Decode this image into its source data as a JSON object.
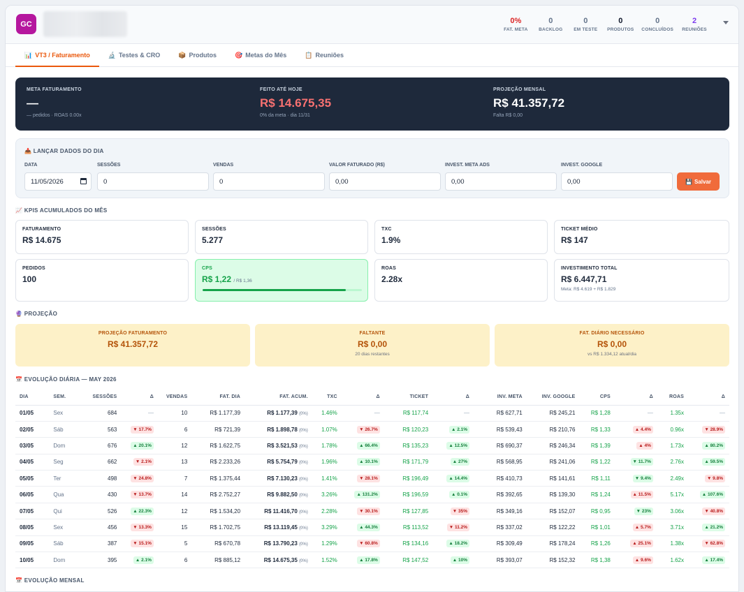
{
  "header": {
    "avatar": "GC",
    "stats": [
      {
        "num": "0%",
        "label": "FAT. META",
        "tone": "red"
      },
      {
        "num": "0",
        "label": "BACKLOG",
        "tone": ""
      },
      {
        "num": "0",
        "label": "EM TESTE",
        "tone": ""
      },
      {
        "num": "0",
        "label": "PRODUTOS",
        "tone": "dark"
      },
      {
        "num": "0",
        "label": "CONCLUÍDOS",
        "tone": ""
      },
      {
        "num": "2",
        "label": "REUNIÕES",
        "tone": "purple"
      }
    ]
  },
  "tabs": [
    {
      "icon": "📊",
      "label": "VT3 / Faturamento"
    },
    {
      "icon": "🔬",
      "label": "Testes & CRO"
    },
    {
      "icon": "📦",
      "label": "Produtos"
    },
    {
      "icon": "🎯",
      "label": "Metas do Mês"
    },
    {
      "icon": "📋",
      "label": "Reuniões"
    }
  ],
  "banner": {
    "meta": {
      "label": "META FATURAMENTO",
      "value": "—",
      "sub": "— pedidos · ROAS 0.00x"
    },
    "feito": {
      "label": "FEITO ATÉ HOJE",
      "value": "R$ 14.675,35",
      "sub": "0% da meta · dia 11/31"
    },
    "projecao": {
      "label": "PROJEÇÃO MENSAL",
      "value": "R$ 41.357,72",
      "sub": "Falta R$ 0,00"
    }
  },
  "launch": {
    "icon": "📥",
    "title": "LANÇAR DADOS DO DIA",
    "fields": [
      {
        "label": "DATA",
        "value": "11/05/2026"
      },
      {
        "label": "SESSÕES",
        "value": "0"
      },
      {
        "label": "VENDAS",
        "value": "0"
      },
      {
        "label": "VALOR FATURADO (R$)",
        "value": "0,00"
      },
      {
        "label": "INVEST. META ADS",
        "value": "0,00"
      },
      {
        "label": "INVEST. GOOGLE",
        "value": "0,00"
      }
    ],
    "save": {
      "icon": "💾",
      "label": "Salvar"
    }
  },
  "kpis": {
    "icon": "📈",
    "title": "KPIS ACUMULADOS DO MÊS",
    "faturamento": {
      "label": "FATURAMENTO",
      "value": "R$ 14.675"
    },
    "sessoes": {
      "label": "SESSÕES",
      "value": "5.277"
    },
    "txc": {
      "label": "TXC",
      "value": "1.9%"
    },
    "ticket": {
      "label": "TICKET MÉDIO",
      "value": "R$ 147"
    },
    "pedidos": {
      "label": "PEDIDOS",
      "value": "100"
    },
    "cps": {
      "label": "CPS",
      "value": "R$ 1,22",
      "ref": "/ R$ 1,36",
      "progress": 0.9
    },
    "roas": {
      "label": "ROAS",
      "value": "2.28x"
    },
    "invest": {
      "label": "INVESTIMENTO TOTAL",
      "value": "R$ 6.447,71",
      "sub": "Meta: R$ 4.619 + R$ 1.829"
    }
  },
  "projection": {
    "icon": "🔮",
    "title": "PROJEÇÃO",
    "cards": [
      {
        "label": "PROJEÇÃO FATURAMENTO",
        "value": "R$ 41.357,72",
        "sub": ""
      },
      {
        "label": "FALTANTE",
        "value": "R$ 0,00",
        "sub": "20 dias restantes"
      },
      {
        "label": "FAT. DIÁRIO NECESSÁRIO",
        "value": "R$ 0,00",
        "sub": "vs R$ 1.334,12 atual/dia"
      }
    ]
  },
  "daily": {
    "icon": "📅",
    "title": "EVOLUÇÃO DIÁRIA — MAY 2026",
    "columns": [
      "DIA",
      "SEM.",
      "SESSÕES",
      "Δ",
      "VENDAS",
      "FAT. DIA",
      "FAT. ACUM.",
      "TXC",
      "Δ",
      "TICKET",
      "Δ",
      "INV. META",
      "INV. GOOGLE",
      "CPS",
      "Δ",
      "ROAS",
      "Δ"
    ],
    "rows": [
      {
        "dia": "01/05",
        "sem": "Sex",
        "sessoes": "684",
        "d1": {
          "t": "—",
          "dir": ""
        },
        "vendas": "10",
        "fatdia": "R$ 1.177,39",
        "fatacum": "R$ 1.177,39",
        "pct": "(0%)",
        "txc": "1.46%",
        "d2": {
          "t": "—",
          "dir": ""
        },
        "ticket": "R$ 117,74",
        "d3": {
          "t": "—",
          "dir": ""
        },
        "invmeta": "R$ 627,71",
        "invgoogle": "R$ 245,21",
        "cps": "R$ 1,28",
        "d4": {
          "t": "—",
          "dir": ""
        },
        "roas": "1.35x",
        "d5": {
          "t": "—",
          "dir": ""
        }
      },
      {
        "dia": "02/05",
        "sem": "Sáb",
        "sessoes": "563",
        "d1": {
          "t": "▼ 17.7%",
          "dir": "down"
        },
        "vendas": "6",
        "fatdia": "R$ 721,39",
        "fatacum": "R$ 1.898,78",
        "pct": "(0%)",
        "txc": "1.07%",
        "d2": {
          "t": "▼ 26.7%",
          "dir": "down"
        },
        "ticket": "R$ 120,23",
        "d3": {
          "t": "▲ 2.1%",
          "dir": "up"
        },
        "invmeta": "R$ 539,43",
        "invgoogle": "R$ 210,76",
        "cps": "R$ 1,33",
        "d4": {
          "t": "▲ 4.4%",
          "dir": "down"
        },
        "roas": "0.96x",
        "d5": {
          "t": "▼ 28.9%",
          "dir": "down"
        }
      },
      {
        "dia": "03/05",
        "sem": "Dom",
        "sessoes": "676",
        "d1": {
          "t": "▲ 20.1%",
          "dir": "up"
        },
        "vendas": "12",
        "fatdia": "R$ 1.622,75",
        "fatacum": "R$ 3.521,53",
        "pct": "(0%)",
        "txc": "1.78%",
        "d2": {
          "t": "▲ 66.4%",
          "dir": "up"
        },
        "ticket": "R$ 135,23",
        "d3": {
          "t": "▲ 12.5%",
          "dir": "up"
        },
        "invmeta": "R$ 690,37",
        "invgoogle": "R$ 246,34",
        "cps": "R$ 1,39",
        "d4": {
          "t": "▲ 4%",
          "dir": "down"
        },
        "roas": "1.73x",
        "d5": {
          "t": "▲ 80.2%",
          "dir": "up"
        }
      },
      {
        "dia": "04/05",
        "sem": "Seg",
        "sessoes": "662",
        "d1": {
          "t": "▼ 2.1%",
          "dir": "down"
        },
        "vendas": "13",
        "fatdia": "R$ 2.233,26",
        "fatacum": "R$ 5.754,79",
        "pct": "(0%)",
        "txc": "1.96%",
        "d2": {
          "t": "▲ 10.1%",
          "dir": "up"
        },
        "ticket": "R$ 171,79",
        "d3": {
          "t": "▲ 27%",
          "dir": "up"
        },
        "invmeta": "R$ 568,95",
        "invgoogle": "R$ 241,06",
        "cps": "R$ 1,22",
        "d4": {
          "t": "▼ 11.7%",
          "dir": "up"
        },
        "roas": "2.76x",
        "d5": {
          "t": "▲ 59.5%",
          "dir": "up"
        }
      },
      {
        "dia": "05/05",
        "sem": "Ter",
        "sessoes": "498",
        "d1": {
          "t": "▼ 24.8%",
          "dir": "down"
        },
        "vendas": "7",
        "fatdia": "R$ 1.375,44",
        "fatacum": "R$ 7.130,23",
        "pct": "(0%)",
        "txc": "1.41%",
        "d2": {
          "t": "▼ 28.1%",
          "dir": "down"
        },
        "ticket": "R$ 196,49",
        "d3": {
          "t": "▲ 14.4%",
          "dir": "up"
        },
        "invmeta": "R$ 410,73",
        "invgoogle": "R$ 141,61",
        "cps": "R$ 1,11",
        "d4": {
          "t": "▼ 9.4%",
          "dir": "up"
        },
        "roas": "2.49x",
        "d5": {
          "t": "▼ 9.8%",
          "dir": "down"
        }
      },
      {
        "dia": "06/05",
        "sem": "Qua",
        "sessoes": "430",
        "d1": {
          "t": "▼ 13.7%",
          "dir": "down"
        },
        "vendas": "14",
        "fatdia": "R$ 2.752,27",
        "fatacum": "R$ 9.882,50",
        "pct": "(0%)",
        "txc": "3.26%",
        "d2": {
          "t": "▲ 131.2%",
          "dir": "up"
        },
        "ticket": "R$ 196,59",
        "d3": {
          "t": "▲ 0.1%",
          "dir": "up"
        },
        "invmeta": "R$ 392,65",
        "invgoogle": "R$ 139,30",
        "cps": "R$ 1,24",
        "d4": {
          "t": "▲ 11.5%",
          "dir": "down"
        },
        "roas": "5.17x",
        "d5": {
          "t": "▲ 107.6%",
          "dir": "up"
        }
      },
      {
        "dia": "07/05",
        "sem": "Qui",
        "sessoes": "526",
        "d1": {
          "t": "▲ 22.3%",
          "dir": "up"
        },
        "vendas": "12",
        "fatdia": "R$ 1.534,20",
        "fatacum": "R$ 11.416,70",
        "pct": "(0%)",
        "txc": "2.28%",
        "d2": {
          "t": "▼ 30.1%",
          "dir": "down"
        },
        "ticket": "R$ 127,85",
        "d3": {
          "t": "▼ 35%",
          "dir": "down"
        },
        "invmeta": "R$ 349,16",
        "invgoogle": "R$ 152,07",
        "cps": "R$ 0,95",
        "d4": {
          "t": "▼ 23%",
          "dir": "up"
        },
        "roas": "3.06x",
        "d5": {
          "t": "▼ 40.8%",
          "dir": "down"
        }
      },
      {
        "dia": "08/05",
        "sem": "Sex",
        "sessoes": "456",
        "d1": {
          "t": "▼ 13.3%",
          "dir": "down"
        },
        "vendas": "15",
        "fatdia": "R$ 1.702,75",
        "fatacum": "R$ 13.119,45",
        "pct": "(0%)",
        "txc": "3.29%",
        "d2": {
          "t": "▲ 44.3%",
          "dir": "up"
        },
        "ticket": "R$ 113,52",
        "d3": {
          "t": "▼ 11.2%",
          "dir": "down"
        },
        "invmeta": "R$ 337,02",
        "invgoogle": "R$ 122,22",
        "cps": "R$ 1,01",
        "d4": {
          "t": "▲ 5.7%",
          "dir": "down"
        },
        "roas": "3.71x",
        "d5": {
          "t": "▲ 21.2%",
          "dir": "up"
        }
      },
      {
        "dia": "09/05",
        "sem": "Sáb",
        "sessoes": "387",
        "d1": {
          "t": "▼ 15.1%",
          "dir": "down"
        },
        "vendas": "5",
        "fatdia": "R$ 670,78",
        "fatacum": "R$ 13.790,23",
        "pct": "(0%)",
        "txc": "1.29%",
        "d2": {
          "t": "▼ 60.8%",
          "dir": "down"
        },
        "ticket": "R$ 134,16",
        "d3": {
          "t": "▲ 18.2%",
          "dir": "up"
        },
        "invmeta": "R$ 309,49",
        "invgoogle": "R$ 178,24",
        "cps": "R$ 1,26",
        "d4": {
          "t": "▲ 25.1%",
          "dir": "down"
        },
        "roas": "1.38x",
        "d5": {
          "t": "▼ 62.8%",
          "dir": "down"
        }
      },
      {
        "dia": "10/05",
        "sem": "Dom",
        "sessoes": "395",
        "d1": {
          "t": "▲ 2.1%",
          "dir": "up"
        },
        "vendas": "6",
        "fatdia": "R$ 885,12",
        "fatacum": "R$ 14.675,35",
        "pct": "(0%)",
        "txc": "1.52%",
        "d2": {
          "t": "▲ 17.8%",
          "dir": "up"
        },
        "ticket": "R$ 147,52",
        "d3": {
          "t": "▲ 10%",
          "dir": "up"
        },
        "invmeta": "R$ 393,07",
        "invgoogle": "R$ 152,32",
        "cps": "R$ 1,38",
        "d4": {
          "t": "▲ 9.6%",
          "dir": "down"
        },
        "roas": "1.62x",
        "d5": {
          "t": "▲ 17.4%",
          "dir": "up"
        }
      }
    ]
  },
  "monthly": {
    "icon": "📅",
    "title": "EVOLUÇÃO MENSAL"
  }
}
